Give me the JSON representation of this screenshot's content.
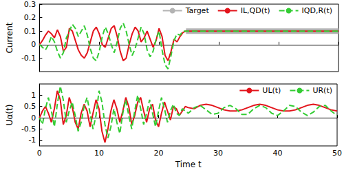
{
  "chart_data": [
    {
      "type": "line",
      "y_label": "Current",
      "x": [
        0,
        0.5,
        1,
        1.5,
        2,
        2.5,
        3,
        3.5,
        4,
        4.5,
        5,
        5.5,
        6,
        6.5,
        7,
        7.5,
        8,
        8.5,
        9,
        9.5,
        10,
        10.5,
        11,
        11.5,
        12,
        12.5,
        13,
        13.5,
        14,
        14.5,
        15,
        15.5,
        16,
        16.5,
        17,
        17.5,
        18,
        18.5,
        19,
        19.5,
        20,
        20.5,
        21,
        21.5,
        22,
        22.5,
        23,
        23.5,
        24,
        24.5,
        25,
        26,
        27,
        28,
        29,
        30,
        31,
        32,
        33,
        34,
        35,
        36,
        37,
        38,
        39,
        40,
        41,
        42,
        43,
        44,
        45,
        46,
        47,
        48,
        49,
        50
      ],
      "xlim": [
        0,
        50
      ],
      "xticks": [
        0,
        10,
        20,
        30,
        40,
        50
      ],
      "ylim": [
        -0.2,
        0.3
      ],
      "yticks": [
        -0.1,
        0,
        0.1,
        0.2,
        0.3
      ],
      "tick_labels": "y",
      "grid": false,
      "legend": "top right",
      "series": [
        {
          "name": "Target",
          "color": "#b3b3b3",
          "line_style": "band",
          "values": [
            null,
            null,
            null,
            null,
            null,
            null,
            null,
            null,
            null,
            null,
            null,
            null,
            null,
            null,
            null,
            null,
            null,
            null,
            null,
            null,
            null,
            null,
            null,
            null,
            null,
            null,
            null,
            null,
            null,
            null,
            null,
            null,
            null,
            null,
            null,
            null,
            null,
            null,
            null,
            null,
            null,
            null,
            null,
            null,
            null,
            null,
            null,
            null,
            null,
            0.1,
            0.1,
            0.1,
            0.1,
            0.1,
            0.1,
            0.1,
            0.1,
            0.1,
            0.1,
            0.1,
            0.1,
            0.1,
            0.1,
            0.1,
            0.1,
            0.1,
            0.1,
            0.1,
            0.1,
            0.1,
            0.1,
            0.1,
            0.1,
            0.1,
            0.1,
            0.1
          ]
        },
        {
          "name": "IL,QD(t)",
          "color": "#e3141b",
          "line_style": "solid",
          "values": [
            0,
            0.03,
            0.07,
            0.1,
            0.08,
            0.05,
            0.11,
            0.06,
            -0.05,
            -0.02,
            0.12,
            0.1,
            0.03,
            -0.04,
            -0.08,
            -0.1,
            -0.06,
            0.02,
            0.1,
            0.13,
            0.08,
            0,
            -0.02,
            0.05,
            0.12,
            0.14,
            0.06,
            -0.05,
            -0.12,
            -0.1,
            0,
            0.08,
            0.13,
            0.1,
            0.02,
            0.05,
            0.1,
            0.04,
            -0.02,
            0.03,
            0.12,
            0.06,
            -0.08,
            -0.12,
            -0.05,
            0.04,
            0.02,
            0.06,
            0.09,
            0.1,
            0.1,
            0.1,
            0.1,
            0.1,
            0.1,
            0.1,
            0.1,
            0.1,
            0.1,
            0.1,
            0.1,
            0.1,
            0.1,
            0.1,
            0.1,
            0.1,
            0.1,
            0.1,
            0.1,
            0.1,
            0.1,
            0.1,
            0.1,
            0.1,
            0.1,
            0.1
          ]
        },
        {
          "name": "IQD,R(t)",
          "color": "#33cc33",
          "line_style": "dashed",
          "values": [
            0,
            -0.02,
            -0.04,
            0,
            0.06,
            0.02,
            -0.05,
            -0.1,
            -0.06,
            0.05,
            0.1,
            0.15,
            0.12,
            0.06,
            0.1,
            0.14,
            0.07,
            -0.03,
            -0.1,
            -0.12,
            -0.05,
            0.06,
            0.13,
            0.08,
            0,
            -0.06,
            0.02,
            0.12,
            0.16,
            0.1,
            0,
            -0.08,
            -0.03,
            0.05,
            0.13,
            0.08,
            -0.04,
            -0.09,
            -0.05,
            0.04,
            0.1,
            -0.04,
            -0.15,
            -0.18,
            -0.08,
            0.03,
            0.08,
            0.07,
            0.1,
            0.1,
            0.1,
            0.1,
            0.1,
            0.1,
            0.1,
            0.1,
            0.1,
            0.1,
            0.1,
            0.1,
            0.1,
            0.1,
            0.1,
            0.1,
            0.1,
            0.1,
            0.1,
            0.1,
            0.1,
            0.1,
            0.1,
            0.1,
            0.1,
            0.1,
            0.1,
            0.1
          ]
        }
      ]
    },
    {
      "type": "line",
      "x_label": "Time t",
      "y_label": "Uα(t)",
      "x": [
        0,
        0.5,
        1,
        1.5,
        2,
        2.5,
        3,
        3.5,
        4,
        4.5,
        5,
        5.5,
        6,
        6.5,
        7,
        7.5,
        8,
        8.5,
        9,
        9.5,
        10,
        10.5,
        11,
        11.5,
        12,
        12.5,
        13,
        13.5,
        14,
        14.5,
        15,
        15.5,
        16,
        16.5,
        17,
        17.5,
        18,
        18.5,
        19,
        19.5,
        20,
        20.5,
        21,
        21.5,
        22,
        22.5,
        23,
        23.5,
        24,
        24.5,
        25,
        26,
        27,
        28,
        29,
        30,
        31,
        32,
        33,
        34,
        35,
        36,
        37,
        38,
        39,
        40,
        41,
        42,
        43,
        44,
        45,
        46,
        47,
        48,
        49,
        50
      ],
      "xlim": [
        0,
        50
      ],
      "xticks": [
        0,
        10,
        20,
        30,
        40,
        50
      ],
      "ylim": [
        -1.25,
        1.5
      ],
      "yticks": [
        -1,
        -0.5,
        0,
        0.5,
        1
      ],
      "grid": false,
      "legend": "top right",
      "series": [
        {
          "name": "UL(t)",
          "color": "#e3141b",
          "line_style": "solid",
          "values": [
            0,
            0.3,
            0.5,
            0.2,
            -0.2,
            0.4,
            1.2,
            0.8,
            -0.3,
            0.1,
            0.9,
            0.5,
            -0.2,
            -0.5,
            0.2,
            0.6,
            0.3,
            -0.4,
            0.2,
            0.8,
            0.4,
            -0.6,
            -1.1,
            -0.5,
            0.3,
            0.8,
            0.4,
            -0.2,
            0.3,
            0.9,
            0.5,
            -0.3,
            0.1,
            0.7,
            0.9,
            0.3,
            -0.2,
            0.4,
            0.6,
            -0.1,
            -0.4,
            0.2,
            0.7,
            0.3,
            -0.1,
            0.5,
            0.4,
            0.1,
            0.3,
            0.5,
            0.45,
            0.4,
            0.55,
            0.6,
            0.55,
            0.45,
            0.35,
            0.3,
            0.3,
            0.35,
            0.45,
            0.55,
            0.6,
            0.55,
            0.45,
            0.35,
            0.3,
            0.3,
            0.35,
            0.45,
            0.55,
            0.6,
            0.55,
            0.45,
            0.35,
            0.3
          ]
        },
        {
          "name": "UR(t)",
          "color": "#33cc33",
          "line_style": "dashed",
          "values": [
            0,
            -0.3,
            0.4,
            0.9,
            0.3,
            -0.4,
            0.6,
            1.4,
            0.8,
            -0.2,
            0.3,
            0.7,
            0.1,
            -0.6,
            -0.2,
            0.5,
            0.9,
            0.2,
            -0.5,
            0.1,
            1.2,
            0.7,
            -0.3,
            -0.9,
            -0.4,
            0.4,
            -0.2,
            -0.7,
            0.2,
            0.8,
            0.1,
            -0.5,
            0.3,
            1,
            0.4,
            -0.3,
            0.2,
            0.8,
            0.2,
            -0.4,
            0.3,
            0.9,
            0.4,
            -0.2,
            0.3,
            0.6,
            0.2,
            0.1,
            0.4,
            0.3,
            0.2,
            0.45,
            0.55,
            0.35,
            0.15,
            0.2,
            0.45,
            0.55,
            0.4,
            0.15,
            0.15,
            0.4,
            0.55,
            0.45,
            0.2,
            0.1,
            0.3,
            0.55,
            0.5,
            0.25,
            0.1,
            0.25,
            0.5,
            0.55,
            0.3,
            0.1
          ]
        }
      ]
    }
  ]
}
